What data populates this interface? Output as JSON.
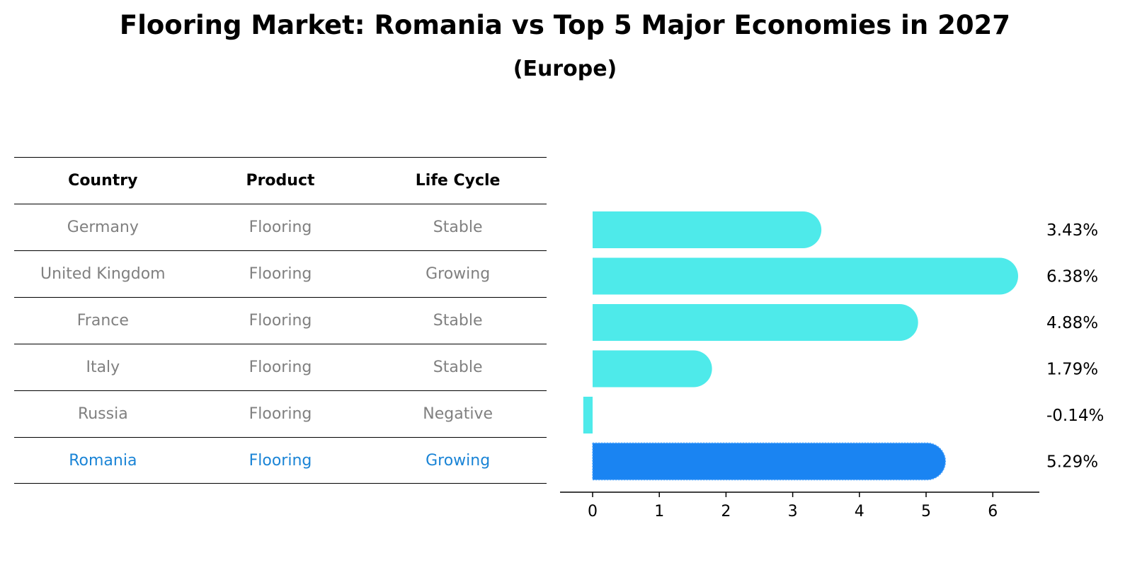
{
  "title": "Flooring Market: Romania vs Top 5 Major Economies in 2027",
  "subtitle": "(Europe)",
  "table": {
    "headers": [
      "Country",
      "Product",
      "Life Cycle"
    ],
    "rows": [
      [
        "Germany",
        "Flooring",
        "Stable"
      ],
      [
        "United Kingdom",
        "Flooring",
        "Growing"
      ],
      [
        "France",
        "Flooring",
        "Stable"
      ],
      [
        "Italy",
        "Flooring",
        "Stable"
      ],
      [
        "Russia",
        "Flooring",
        "Negative"
      ],
      [
        "Romania",
        "Flooring",
        "Growing"
      ]
    ],
    "highlight_row": 5,
    "text_color": "#808080",
    "highlight_color": "#1a84d6"
  },
  "chart_data": {
    "type": "bar",
    "orientation": "horizontal",
    "categories": [
      "Germany",
      "United Kingdom",
      "France",
      "Italy",
      "Russia",
      "Romania"
    ],
    "values": [
      3.43,
      6.38,
      4.88,
      1.79,
      -0.14,
      5.29
    ],
    "value_labels": [
      "3.43%",
      "6.38%",
      "4.88%",
      "1.79%",
      "-0.14%",
      "5.29%"
    ],
    "xlim": [
      -0.48,
      6.7
    ],
    "xticks": [
      0,
      1,
      2,
      3,
      4,
      5,
      6
    ],
    "tick_labels": [
      "0",
      "1",
      "2",
      "3",
      "4",
      "5",
      "6"
    ],
    "bar_color": "#4eeaea",
    "highlight_color": "#1a84f2",
    "highlight_index": 5,
    "grid": false
  }
}
